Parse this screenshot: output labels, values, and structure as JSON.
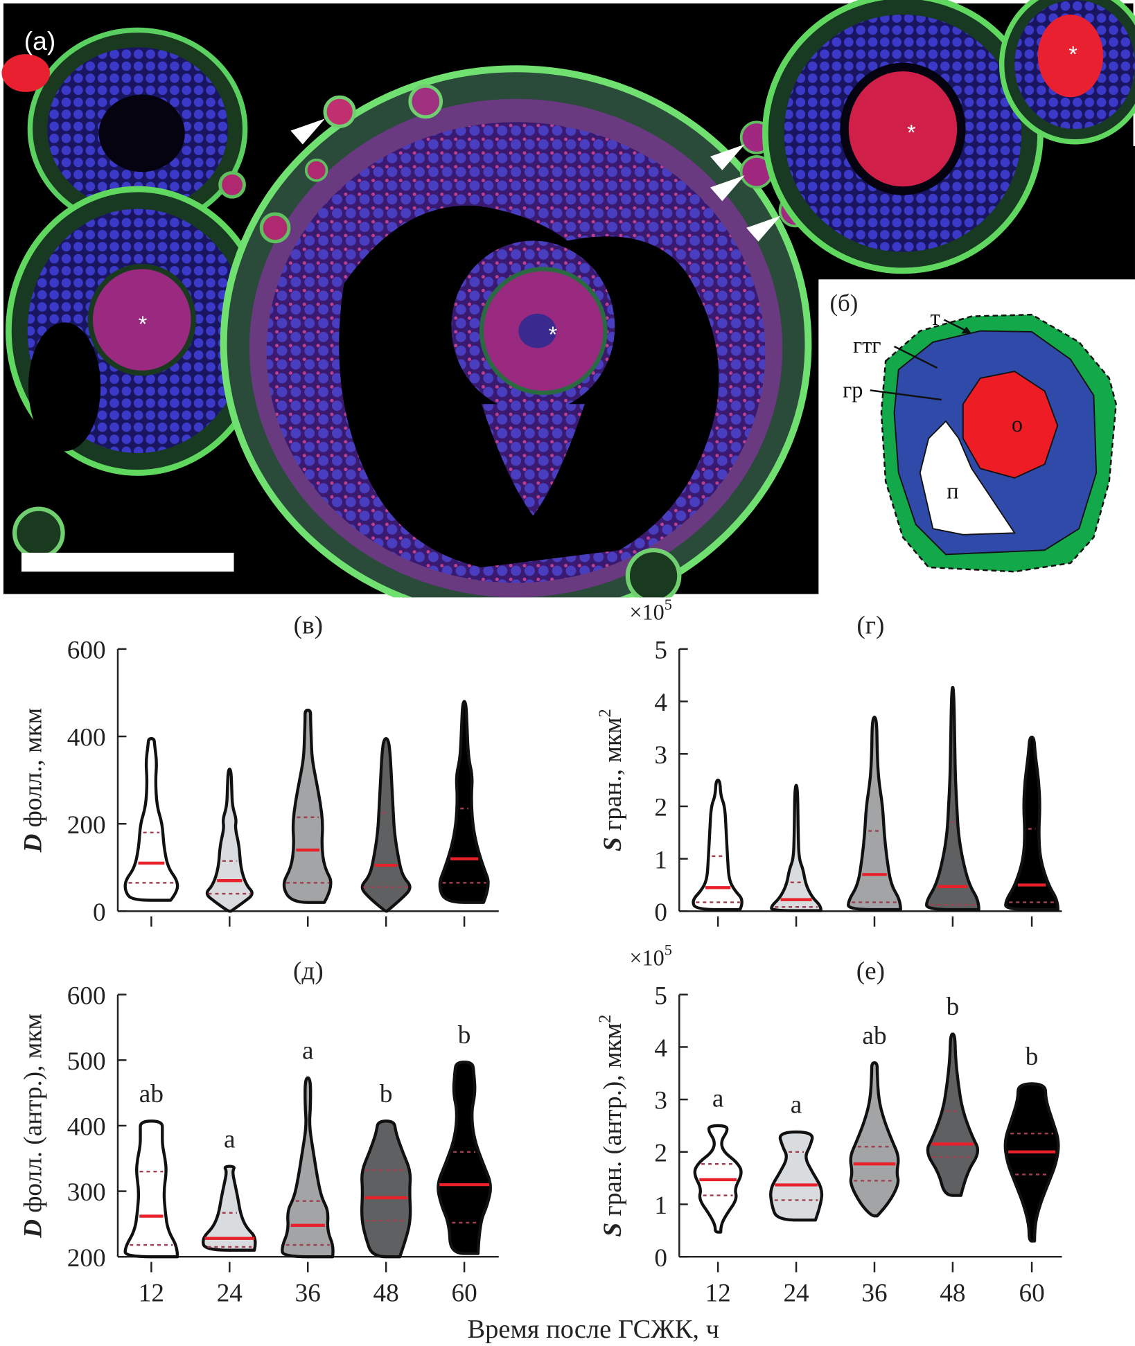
{
  "figure": {
    "photo": {
      "label": "(а)",
      "marker": "*"
    },
    "schematic": {
      "label": "(б)",
      "labels": {
        "theca": "т",
        "gtg": "гтг",
        "granulosa": "гр",
        "oocyte": "о",
        "antrum": "п"
      },
      "colors": {
        "theca": "#13a84a",
        "granulosa": "#2f4aa8",
        "oocyte": "#ee1c25",
        "antrum": "#ffffff"
      }
    }
  },
  "xlabel": "Время после ГСЖК, ч",
  "colors": {
    "median": "#e8202a",
    "quartile": "#a04050",
    "fills": [
      "#ffffff",
      "#d9dcdf",
      "#a2a4a6",
      "#5f6061",
      "#000000"
    ]
  },
  "chart_data": [
    {
      "type": "violin",
      "title": "(в)",
      "ylabel_var": "D",
      "ylabel_text": " фолл., мкм",
      "ylabel_sup": "",
      "multiplier_base": "",
      "multiplier_exp": "",
      "categories": [
        "12",
        "24",
        "36",
        "48",
        "60"
      ],
      "show_xticklabels": false,
      "ylim": [
        0,
        600
      ],
      "yticks": [
        "0",
        "200",
        "400",
        "600"
      ],
      "letters": [
        "",
        "",
        "",
        "",
        ""
      ],
      "violins": [
        {
          "min": 25,
          "max": 395,
          "median": 110,
          "q1": 65,
          "q3": 180,
          "density": [
            [
              25,
              0.7
            ],
            [
              45,
              0.95
            ],
            [
              70,
              0.95
            ],
            [
              100,
              0.6
            ],
            [
              150,
              0.45
            ],
            [
              200,
              0.4
            ],
            [
              240,
              0.2
            ],
            [
              300,
              0.15
            ],
            [
              340,
              0.2
            ],
            [
              380,
              0.12
            ],
            [
              395,
              0.1
            ]
          ]
        },
        {
          "min": 0,
          "max": 325,
          "median": 70,
          "q1": 40,
          "q3": 115,
          "density": [
            [
              0,
              0.05
            ],
            [
              20,
              0.5
            ],
            [
              40,
              0.9
            ],
            [
              60,
              0.6
            ],
            [
              100,
              0.4
            ],
            [
              150,
              0.35
            ],
            [
              190,
              0.2
            ],
            [
              210,
              0.25
            ],
            [
              240,
              0.1
            ],
            [
              280,
              0.08
            ],
            [
              325,
              0.05
            ]
          ]
        },
        {
          "min": 20,
          "max": 460,
          "median": 140,
          "q1": 65,
          "q3": 215,
          "density": [
            [
              20,
              0.6
            ],
            [
              60,
              0.95
            ],
            [
              100,
              0.6
            ],
            [
              150,
              0.5
            ],
            [
              200,
              0.55
            ],
            [
              250,
              0.45
            ],
            [
              300,
              0.3
            ],
            [
              350,
              0.15
            ],
            [
              400,
              0.12
            ],
            [
              440,
              0.1
            ],
            [
              460,
              0.1
            ]
          ]
        },
        {
          "min": 0,
          "max": 395,
          "median": 105,
          "q1": 55,
          "q3": 225,
          "density": [
            [
              0,
              0.03
            ],
            [
              30,
              0.6
            ],
            [
              55,
              0.95
            ],
            [
              80,
              0.6
            ],
            [
              120,
              0.45
            ],
            [
              180,
              0.3
            ],
            [
              240,
              0.25
            ],
            [
              300,
              0.2
            ],
            [
              360,
              0.15
            ],
            [
              395,
              0.08
            ]
          ]
        },
        {
          "min": 20,
          "max": 480,
          "median": 120,
          "q1": 65,
          "q3": 235,
          "density": [
            [
              20,
              0.7
            ],
            [
              60,
              0.95
            ],
            [
              100,
              0.7
            ],
            [
              150,
              0.45
            ],
            [
              200,
              0.3
            ],
            [
              260,
              0.25
            ],
            [
              310,
              0.3
            ],
            [
              350,
              0.15
            ],
            [
              420,
              0.1
            ],
            [
              480,
              0.06
            ]
          ]
        }
      ]
    },
    {
      "type": "violin",
      "title": "(г)",
      "ylabel_var": "S",
      "ylabel_text": " гран., мкм",
      "ylabel_sup": "2",
      "multiplier_base": "×10",
      "multiplier_exp": "5",
      "categories": [
        "12",
        "24",
        "36",
        "48",
        "60"
      ],
      "show_xticklabels": false,
      "ylim": [
        0,
        5
      ],
      "yticks": [
        "0",
        "1",
        "2",
        "3",
        "4",
        "5"
      ],
      "letters": [
        "",
        "",
        "",
        "",
        ""
      ],
      "violins": [
        {
          "min": 0.03,
          "max": 2.5,
          "median": 0.45,
          "q1": 0.17,
          "q3": 1.05,
          "density": [
            [
              0.03,
              0.8
            ],
            [
              0.2,
              0.95
            ],
            [
              0.4,
              0.6
            ],
            [
              0.6,
              0.4
            ],
            [
              1,
              0.35
            ],
            [
              1.5,
              0.3
            ],
            [
              2,
              0.25
            ],
            [
              2.2,
              0.1
            ],
            [
              2.5,
              0.07
            ]
          ]
        },
        {
          "min": 0.01,
          "max": 2.4,
          "median": 0.22,
          "q1": 0.08,
          "q3": 0.55,
          "density": [
            [
              0.01,
              0.9
            ],
            [
              0.1,
              0.9
            ],
            [
              0.25,
              0.6
            ],
            [
              0.5,
              0.35
            ],
            [
              0.8,
              0.25
            ],
            [
              1.0,
              0.1
            ],
            [
              1.5,
              0.07
            ],
            [
              2.4,
              0.05
            ]
          ]
        },
        {
          "min": 0.03,
          "max": 3.7,
          "median": 0.7,
          "q1": 0.17,
          "q3": 1.53,
          "density": [
            [
              0.03,
              0.95
            ],
            [
              0.2,
              0.95
            ],
            [
              0.5,
              0.6
            ],
            [
              1,
              0.45
            ],
            [
              1.5,
              0.35
            ],
            [
              2,
              0.3
            ],
            [
              2.5,
              0.15
            ],
            [
              3,
              0.1
            ],
            [
              3.7,
              0.08
            ]
          ]
        },
        {
          "min": 0.03,
          "max": 4.27,
          "median": 0.47,
          "q1": 0.12,
          "q3": 1.7,
          "density": [
            [
              0.03,
              0.95
            ],
            [
              0.2,
              0.95
            ],
            [
              0.5,
              0.6
            ],
            [
              1,
              0.35
            ],
            [
              1.5,
              0.2
            ],
            [
              2,
              0.15
            ],
            [
              2.5,
              0.1
            ],
            [
              3,
              0.08
            ],
            [
              4.27,
              0.04
            ]
          ]
        },
        {
          "min": 0.03,
          "max": 3.32,
          "median": 0.5,
          "q1": 0.17,
          "q3": 1.57,
          "density": [
            [
              0.03,
              0.95
            ],
            [
              0.2,
              0.95
            ],
            [
              0.5,
              0.6
            ],
            [
              1,
              0.3
            ],
            [
              1.5,
              0.25
            ],
            [
              2,
              0.3
            ],
            [
              2.5,
              0.25
            ],
            [
              3,
              0.12
            ],
            [
              3.32,
              0.08
            ]
          ]
        }
      ]
    },
    {
      "type": "violin",
      "title": "(д)",
      "ylabel_var": "D",
      "ylabel_text": " фолл. (антр.), мкм",
      "ylabel_sup": "",
      "multiplier_base": "",
      "multiplier_exp": "",
      "categories": [
        "12",
        "24",
        "36",
        "48",
        "60"
      ],
      "show_xticklabels": true,
      "ylim": [
        200,
        600
      ],
      "yticks": [
        "200",
        "300",
        "400",
        "500",
        "600"
      ],
      "letters": [
        "ab",
        "a",
        "a",
        "b",
        "b"
      ],
      "violins": [
        {
          "min": 200,
          "max": 407,
          "median": 262,
          "q1": 218,
          "q3": 330,
          "density": [
            [
              200,
              0.95
            ],
            [
              215,
              0.95
            ],
            [
              240,
              0.6
            ],
            [
              270,
              0.5
            ],
            [
              300,
              0.45
            ],
            [
              330,
              0.55
            ],
            [
              350,
              0.5
            ],
            [
              370,
              0.4
            ],
            [
              390,
              0.4
            ],
            [
              407,
              0.4
            ]
          ]
        },
        {
          "min": 210,
          "max": 338,
          "median": 228,
          "q1": 215,
          "q3": 267,
          "density": [
            [
              210,
              0.9
            ],
            [
              228,
              1.0
            ],
            [
              245,
              0.6
            ],
            [
              265,
              0.4
            ],
            [
              290,
              0.3
            ],
            [
              310,
              0.2
            ],
            [
              330,
              0.1
            ],
            [
              338,
              0.2
            ]
          ]
        },
        {
          "min": 200,
          "max": 473,
          "median": 248,
          "q1": 218,
          "q3": 285,
          "density": [
            [
              200,
              0.9
            ],
            [
              215,
              0.95
            ],
            [
              240,
              0.7
            ],
            [
              270,
              0.75
            ],
            [
              290,
              0.5
            ],
            [
              320,
              0.35
            ],
            [
              360,
              0.2
            ],
            [
              400,
              0.05
            ],
            [
              430,
              0.1
            ],
            [
              473,
              0.1
            ]
          ]
        },
        {
          "min": 200,
          "max": 407,
          "median": 290,
          "q1": 255,
          "q3": 332,
          "density": [
            [
              200,
              0.5
            ],
            [
              230,
              0.75
            ],
            [
              260,
              0.9
            ],
            [
              300,
              0.85
            ],
            [
              330,
              0.9
            ],
            [
              360,
              0.6
            ],
            [
              390,
              0.35
            ],
            [
              407,
              0.3
            ]
          ]
        },
        {
          "min": 205,
          "max": 497,
          "median": 310,
          "q1": 252,
          "q3": 360,
          "density": [
            [
              205,
              0.5
            ],
            [
              250,
              0.55
            ],
            [
              280,
              0.85
            ],
            [
              310,
              1.0
            ],
            [
              340,
              0.7
            ],
            [
              380,
              0.35
            ],
            [
              420,
              0.25
            ],
            [
              450,
              0.4
            ],
            [
              480,
              0.35
            ],
            [
              497,
              0.3
            ]
          ]
        }
      ]
    },
    {
      "type": "violin",
      "title": "(е)",
      "ylabel_var": "S",
      "ylabel_text": " гран. (антр.), мкм",
      "ylabel_sup": "2",
      "multiplier_base": "×10",
      "multiplier_exp": "5",
      "categories": [
        "12",
        "24",
        "36",
        "48",
        "60"
      ],
      "show_xticklabels": true,
      "ylim": [
        0,
        5
      ],
      "yticks": [
        "0",
        "1",
        "2",
        "3",
        "4",
        "5"
      ],
      "letters": [
        "a",
        "a",
        "ab",
        "b",
        "b"
      ],
      "violins": [
        {
          "min": 0.47,
          "max": 2.5,
          "median": 1.47,
          "q1": 1.17,
          "q3": 1.77,
          "density": [
            [
              0.47,
              0.1
            ],
            [
              0.6,
              0.1
            ],
            [
              0.8,
              0.3
            ],
            [
              1.1,
              0.7
            ],
            [
              1.3,
              0.6
            ],
            [
              1.6,
              0.9
            ],
            [
              1.8,
              0.7
            ],
            [
              2.0,
              0.2
            ],
            [
              2.2,
              0.1
            ],
            [
              2.4,
              0.35
            ],
            [
              2.5,
              0.3
            ]
          ]
        },
        {
          "min": 0.7,
          "max": 2.38,
          "median": 1.37,
          "q1": 1.08,
          "q3": 2.0,
          "density": [
            [
              0.7,
              0.7
            ],
            [
              1.0,
              0.9
            ],
            [
              1.3,
              0.95
            ],
            [
              1.6,
              0.6
            ],
            [
              1.9,
              0.3
            ],
            [
              2.1,
              0.5
            ],
            [
              2.38,
              0.65
            ]
          ]
        },
        {
          "min": 0.78,
          "max": 3.7,
          "median": 1.77,
          "q1": 1.45,
          "q3": 2.1,
          "density": [
            [
              0.78,
              0.1
            ],
            [
              1.0,
              0.5
            ],
            [
              1.4,
              0.9
            ],
            [
              1.6,
              0.8
            ],
            [
              1.9,
              0.9
            ],
            [
              2.2,
              0.65
            ],
            [
              2.6,
              0.35
            ],
            [
              3.0,
              0.15
            ],
            [
              3.5,
              0.1
            ],
            [
              3.7,
              0.1
            ]
          ]
        },
        {
          "min": 1.17,
          "max": 4.25,
          "median": 2.15,
          "q1": 1.9,
          "q3": 2.78,
          "density": [
            [
              1.17,
              0.3
            ],
            [
              1.6,
              0.5
            ],
            [
              2.0,
              1.0
            ],
            [
              2.3,
              0.7
            ],
            [
              2.8,
              0.35
            ],
            [
              3.3,
              0.2
            ],
            [
              3.8,
              0.1
            ],
            [
              4.25,
              0.08
            ]
          ]
        },
        {
          "min": 0.3,
          "max": 3.3,
          "median": 2.0,
          "q1": 1.57,
          "q3": 2.35,
          "density": [
            [
              0.3,
              0.1
            ],
            [
              0.6,
              0.1
            ],
            [
              1.0,
              0.3
            ],
            [
              1.4,
              0.6
            ],
            [
              1.8,
              0.9
            ],
            [
              2.2,
              1.0
            ],
            [
              2.6,
              0.75
            ],
            [
              3.0,
              0.5
            ],
            [
              3.3,
              0.5
            ]
          ]
        }
      ]
    }
  ]
}
